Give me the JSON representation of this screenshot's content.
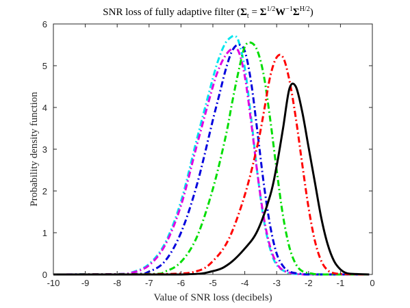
{
  "chart_data": {
    "type": "line",
    "title": {
      "prefix": "SNR loss of fully adaptive filter (",
      "s1": "Σ",
      "s1_sub": "t",
      "eq": " = ",
      "s2": "Σ",
      "s2_sup": "1/2",
      "s3": "W",
      "s3_sup": "−1",
      "s4": "Σ",
      "s4_sup": "H/2",
      "suffix": ")"
    },
    "xlabel": "Value of SNR loss (decibels)",
    "ylabel": "Probability density function",
    "xlim": [
      -10,
      0
    ],
    "ylim": [
      0,
      6
    ],
    "xticks": [
      "-10",
      "-9",
      "-8",
      "-7",
      "-6",
      "-5",
      "-4",
      "-3",
      "-2",
      "-1",
      "0"
    ],
    "yticks": [
      "0",
      "1",
      "2",
      "3",
      "4",
      "5",
      "6"
    ],
    "grid": false,
    "legend": "none",
    "series": [
      {
        "color": "#000000",
        "style": "solid",
        "x": [
          -10,
          -6,
          -5,
          -4.5,
          -4,
          -3.6,
          -3.2,
          -3.0,
          -2.8,
          -2.6,
          -2.4,
          -2.2,
          -2.0,
          -1.8,
          -1.6,
          -1.4,
          -1.2,
          -1.0,
          -0.8,
          -0.5,
          -0.1
        ],
        "y": [
          0,
          0,
          0.08,
          0.25,
          0.62,
          1.05,
          1.9,
          2.6,
          3.5,
          4.45,
          4.5,
          3.9,
          3.05,
          2.2,
          1.35,
          0.72,
          0.32,
          0.12,
          0.03,
          0.01,
          0
        ]
      },
      {
        "color": "#ff0000",
        "style": "dashdot",
        "x": [
          -10,
          -6.5,
          -5.5,
          -5,
          -4.5,
          -4,
          -3.6,
          -3.4,
          -3.2,
          -3.0,
          -2.8,
          -2.6,
          -2.4,
          -2.2,
          -2.0,
          -1.8,
          -1.6,
          -1.4,
          -1.2,
          -0.9,
          -0.4,
          -0.1
        ],
        "y": [
          0,
          0.01,
          0.08,
          0.32,
          0.85,
          1.9,
          3.1,
          3.9,
          4.75,
          5.2,
          5.2,
          4.65,
          3.75,
          2.65,
          1.6,
          0.8,
          0.32,
          0.1,
          0.03,
          0.01,
          0,
          0
        ]
      },
      {
        "color": "#00dd00",
        "style": "dashdot",
        "x": [
          -10,
          -7,
          -6.5,
          -6,
          -5.5,
          -5,
          -4.6,
          -4.4,
          -4.2,
          -4.0,
          -3.8,
          -3.6,
          -3.4,
          -3.2,
          -3.0,
          -2.8,
          -2.6,
          -2.4,
          -2.2,
          -1.9,
          -1.5,
          -0.1
        ],
        "y": [
          0,
          0.01,
          0.07,
          0.3,
          0.9,
          2.05,
          3.3,
          4.1,
          4.85,
          5.45,
          5.55,
          5.35,
          4.75,
          3.7,
          2.5,
          1.4,
          0.65,
          0.25,
          0.08,
          0.02,
          0,
          0
        ]
      },
      {
        "color": "#0000dd",
        "style": "dashdot",
        "x": [
          -10,
          -7.5,
          -7,
          -6.5,
          -6,
          -5.5,
          -5,
          -4.8,
          -4.6,
          -4.4,
          -4.2,
          -4.0,
          -3.8,
          -3.6,
          -3.4,
          -3.2,
          -3.0,
          -2.8,
          -2.6,
          -2.3,
          -1.9,
          -0.1
        ],
        "y": [
          0,
          0.01,
          0.07,
          0.32,
          1.0,
          2.15,
          3.7,
          4.3,
          4.9,
          5.35,
          5.5,
          5.35,
          4.6,
          3.4,
          2.15,
          1.15,
          0.5,
          0.2,
          0.07,
          0.02,
          0,
          0
        ]
      },
      {
        "color": "#e000e0",
        "style": "dashdot",
        "x": [
          -10,
          -8,
          -7.5,
          -7,
          -6.5,
          -6,
          -5.5,
          -5,
          -4.8,
          -4.6,
          -4.4,
          -4.2,
          -4.0,
          -3.8,
          -3.6,
          -3.4,
          -3.2,
          -3.0,
          -2.8,
          -2.5,
          -2.0,
          -0.1
        ],
        "y": [
          0,
          0.01,
          0.05,
          0.22,
          0.7,
          1.65,
          3.1,
          4.5,
          4.95,
          5.25,
          5.4,
          5.35,
          4.75,
          3.65,
          2.4,
          1.35,
          0.65,
          0.27,
          0.1,
          0.03,
          0,
          0
        ]
      },
      {
        "color": "#00e5ee",
        "style": "dashdot",
        "x": [
          -10,
          -8,
          -7.5,
          -7,
          -6.5,
          -6,
          -5.5,
          -5,
          -4.8,
          -4.6,
          -4.4,
          -4.3,
          -4.2,
          -4.0,
          -3.8,
          -3.6,
          -3.4,
          -3.2,
          -3.0,
          -2.7,
          -2.3,
          -0.1
        ],
        "y": [
          0,
          0.01,
          0.06,
          0.25,
          0.75,
          1.75,
          3.25,
          4.7,
          5.2,
          5.55,
          5.7,
          5.7,
          5.6,
          4.95,
          3.75,
          2.4,
          1.3,
          0.6,
          0.23,
          0.06,
          0.01,
          0
        ]
      }
    ]
  }
}
